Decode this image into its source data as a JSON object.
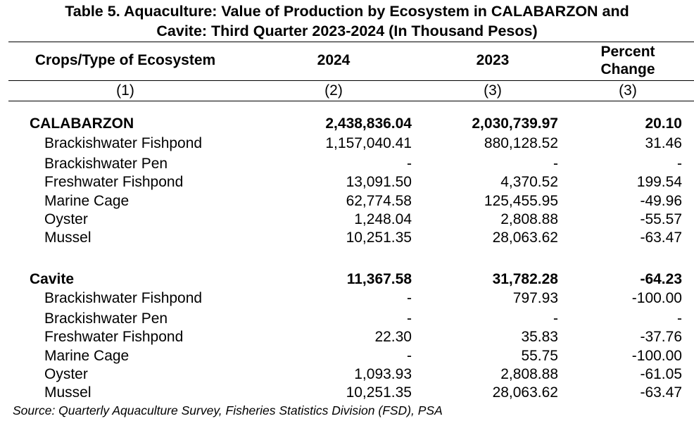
{
  "title": {
    "line1": "Table 5. Aquaculture: Value of Production by Ecosystem in CALABARZON and",
    "line2": "Cavite: Third Quarter 2023-2024 (In Thousand Pesos)"
  },
  "columns": {
    "labels": [
      "Crops/Type of Ecosystem",
      "2024",
      "2023"
    ],
    "percent_change": [
      "Percent",
      "Change"
    ],
    "numbers": [
      "(1)",
      "(2)",
      "(3)",
      "(3)"
    ]
  },
  "groups": [
    {
      "region": "CALABARZON",
      "total": [
        "2,438,836.04",
        "2,030,739.97",
        "20.10"
      ],
      "rows": [
        {
          "label": "Brackishwater Fishpond",
          "v2024": "1,157,040.41",
          "v2023": "880,128.52",
          "pct": "31.46"
        },
        {
          "label": "Brackishwater Pen",
          "v2024": "-",
          "v2023": "-",
          "pct": "-"
        },
        {
          "label": "Freshwater Fishpond",
          "v2024": "13,091.50",
          "v2023": "4,370.52",
          "pct": "199.54"
        },
        {
          "label": "Marine Cage",
          "v2024": "62,774.58",
          "v2023": "125,455.95",
          "pct": "-49.96"
        },
        {
          "label": "Oyster",
          "v2024": "1,248.04",
          "v2023": "2,808.88",
          "pct": "-55.57"
        },
        {
          "label": "Mussel",
          "v2024": "10,251.35",
          "v2023": "28,063.62",
          "pct": "-63.47"
        }
      ]
    },
    {
      "region": "Cavite",
      "total": [
        "11,367.58",
        "31,782.28",
        "-64.23"
      ],
      "rows": [
        {
          "label": "Brackishwater Fishpond",
          "v2024": "-",
          "v2023": "797.93",
          "pct": "-100.00"
        },
        {
          "label": "Brackishwater Pen",
          "v2024": "-",
          "v2023": "-",
          "pct": "-"
        },
        {
          "label": "Freshwater Fishpond",
          "v2024": "22.30",
          "v2023": "35.83",
          "pct": "-37.76"
        },
        {
          "label": "Marine Cage",
          "v2024": "-",
          "v2023": "55.75",
          "pct": "-100.00"
        },
        {
          "label": "Oyster",
          "v2024": "1,093.93",
          "v2023": "2,808.88",
          "pct": "-61.05"
        },
        {
          "label": "Mussel",
          "v2024": "10,251.35",
          "v2023": "28,063.62",
          "pct": "-63.47"
        }
      ]
    }
  ],
  "source": "Source: Quarterly Aquaculture Survey, Fisheries Statistics Division (FSD), PSA"
}
